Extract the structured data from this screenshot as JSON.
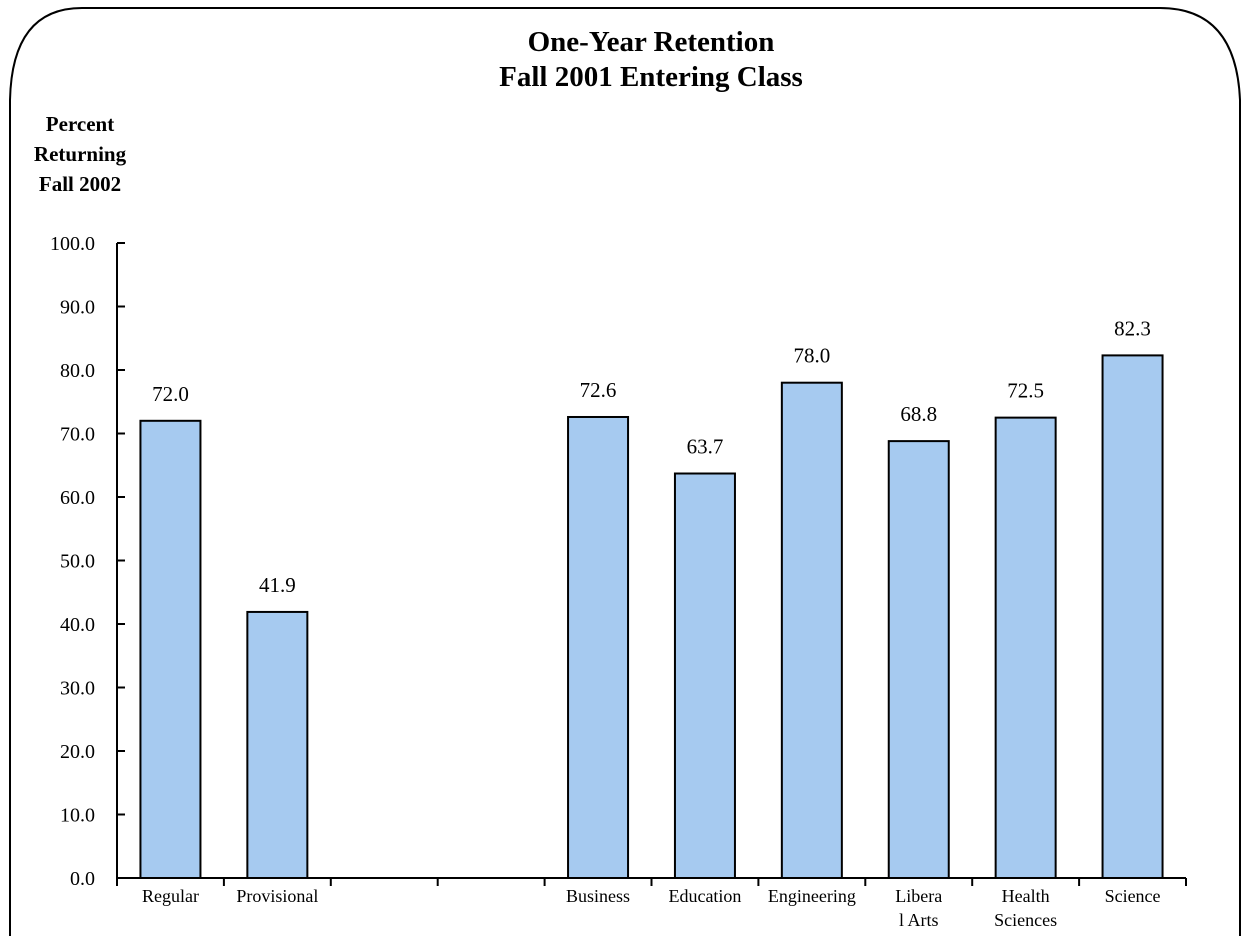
{
  "chart_data": {
    "type": "bar",
    "title": [
      "One-Year Retention",
      "Fall 2001 Entering Class"
    ],
    "ylabel": [
      "Percent",
      "Returning",
      "Fall 2002"
    ],
    "xlabel": "",
    "ylim": [
      0,
      100
    ],
    "yticks": [
      "0.0",
      "10.0",
      "20.0",
      "30.0",
      "40.0",
      "50.0",
      "60.0",
      "70.0",
      "80.0",
      "90.0",
      "100.0"
    ],
    "categories": [
      [
        "Regular"
      ],
      [
        "Provisional"
      ],
      [],
      [],
      [
        "Business"
      ],
      [
        "Education"
      ],
      [
        "Engineering"
      ],
      [
        "Libera",
        "l Arts"
      ],
      [
        "Health",
        "Sciences"
      ],
      [
        "Science"
      ]
    ],
    "values": [
      72.0,
      41.9,
      null,
      null,
      72.6,
      63.7,
      78.0,
      68.8,
      72.5,
      82.3
    ],
    "data_labels": [
      "72.0",
      "41.9",
      "",
      "",
      "72.6",
      "63.7",
      "78.0",
      "68.8",
      "72.5",
      "82.3"
    ],
    "grid": false,
    "colors": {
      "bar_fill": "#a6caf0",
      "bar_stroke": "#000000",
      "frame": "#000000"
    }
  }
}
